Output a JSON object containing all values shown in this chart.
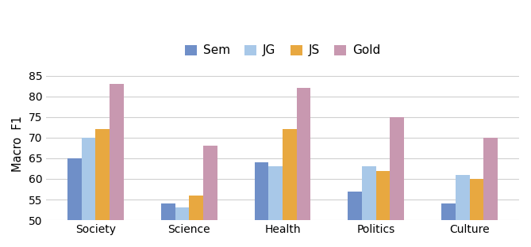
{
  "categories": [
    "Society",
    "Science",
    "Health",
    "Politics",
    "Culture"
  ],
  "series": {
    "Sem": [
      65,
      54,
      64,
      57,
      54
    ],
    "JG": [
      70,
      53,
      63,
      63,
      61
    ],
    "JS": [
      72,
      56,
      72,
      62,
      60
    ],
    "Gold": [
      83,
      68,
      82,
      75,
      70
    ]
  },
  "colors": {
    "Sem": "#6f8fc8",
    "JG": "#a8c8e8",
    "JS": "#e8a840",
    "Gold": "#c898b0"
  },
  "ylabel": "Macro  F1",
  "ylim": [
    50,
    87
  ],
  "yticks": [
    50,
    55,
    60,
    65,
    70,
    75,
    80,
    85
  ],
  "legend_order": [
    "Sem",
    "JG",
    "JS",
    "Gold"
  ],
  "bar_width": 0.15,
  "background_color": "#ffffff",
  "grid_color": "#d0d0d0",
  "figsize": [
    6.69,
    3.12
  ],
  "dpi": 100
}
